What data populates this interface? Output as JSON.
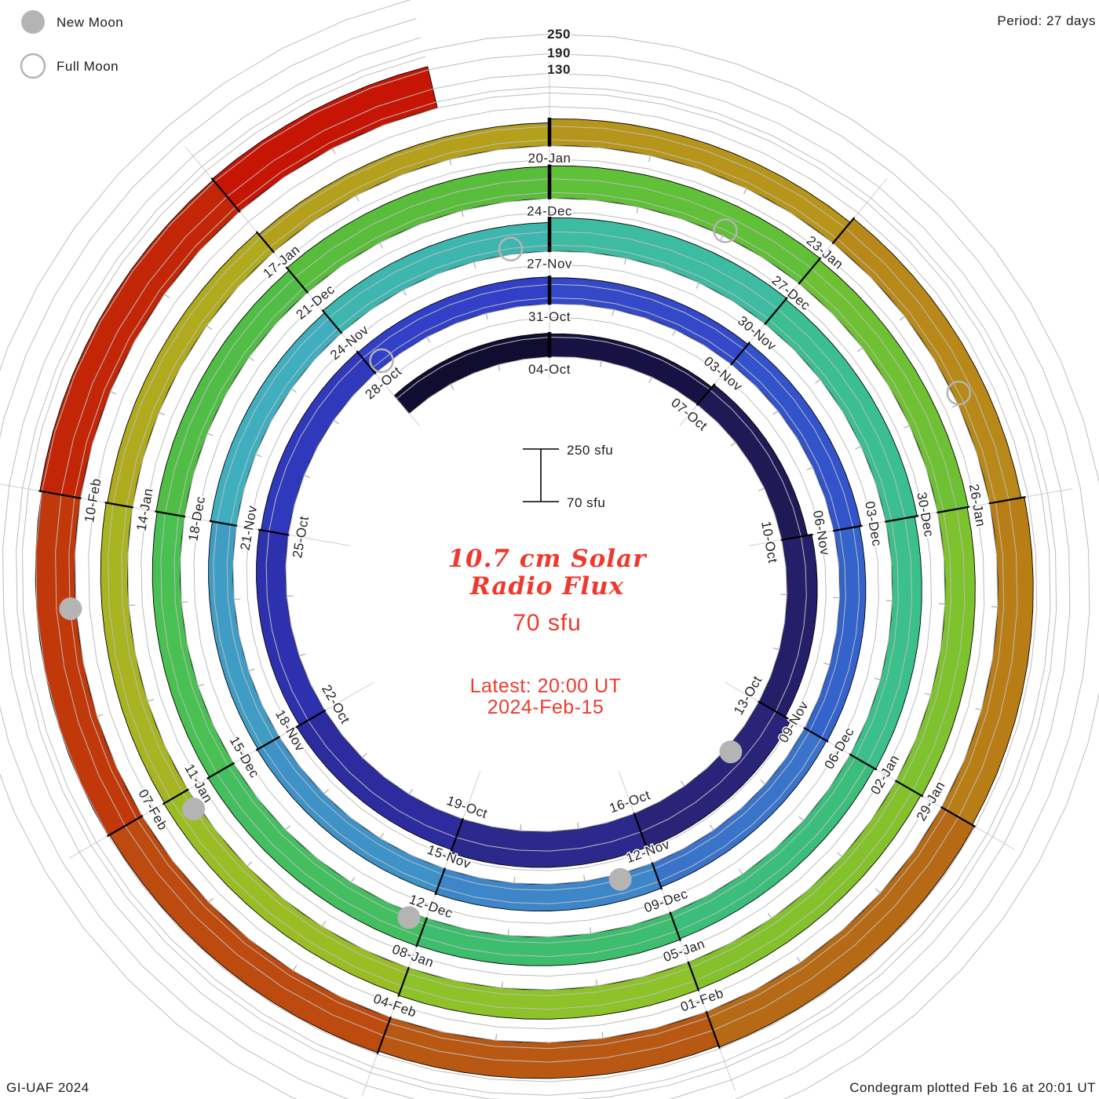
{
  "header": {
    "period_label": "Period: 27 days"
  },
  "legend": {
    "new_moon_label": "New Moon",
    "full_moon_label": "Full Moon",
    "moon_color": "#b4b4b4"
  },
  "footer": {
    "left": "GI-UAF 2024",
    "right": "Condegram plotted Feb 16 at 20:01 UT"
  },
  "center_text": {
    "title_line1": "10.7 cm Solar",
    "title_line2": "Radio Flux",
    "value": "70 sfu",
    "latest_line1": "Latest: 20:00 UT",
    "latest_line2": "2024-Feb-15",
    "color": "#ee3a2e"
  },
  "scale_bar": {
    "top_label": "250 sfu",
    "bottom_label": "70 sfu"
  },
  "radial_scale": {
    "labels": [
      "250",
      "190",
      "130"
    ]
  },
  "chart_data": {
    "type": "spiral_polar_bar_condegram",
    "title": "10.7 cm Solar Radio Flux",
    "units": "sfu",
    "period_days": 27,
    "segment_days": 3,
    "direction": "clockwise",
    "top_anchor_date": "04-Oct",
    "flux_base_sfu": 70,
    "flux_gridlines_sfu": [
      70,
      130,
      190,
      250
    ],
    "data_start_t": 0,
    "data_end_t": 137,
    "grid_end_t": 164,
    "ring_start_dates": [
      "04-Oct",
      "31-Oct",
      "27-Nov",
      "24-Dec",
      "20-Jan"
    ],
    "segments": [
      {
        "date": "01-Oct",
        "label": false,
        "flux": 142,
        "color": "#110d31"
      },
      {
        "date": "04-Oct",
        "label": true,
        "flux": 140,
        "color": "#181244"
      },
      {
        "date": "07-Oct",
        "label": true,
        "flux": 150,
        "color": "#1f1955"
      },
      {
        "date": "10-Oct",
        "label": true,
        "flux": 163,
        "color": "#251e68"
      },
      {
        "date": "13-Oct",
        "label": true,
        "flux": 183,
        "color": "#2a2478"
      },
      {
        "date": "16-Oct",
        "label": true,
        "flux": 180,
        "color": "#2b2a8c"
      },
      {
        "date": "19-Oct",
        "label": true,
        "flux": 170,
        "color": "#2c2c9e"
      },
      {
        "date": "22-Oct",
        "label": true,
        "flux": 160,
        "color": "#2e31ae"
      },
      {
        "date": "25-Oct",
        "label": true,
        "flux": 155,
        "color": "#3038bb"
      },
      {
        "date": "28-Oct",
        "label": true,
        "flux": 153,
        "color": "#3140c6"
      },
      {
        "date": "31-Oct",
        "label": true,
        "flux": 150,
        "color": "#3449c8"
      },
      {
        "date": "03-Nov",
        "label": true,
        "flux": 155,
        "color": "#3253ca"
      },
      {
        "date": "06-Nov",
        "label": true,
        "flux": 150,
        "color": "#3363cb"
      },
      {
        "date": "09-Nov",
        "label": true,
        "flux": 148,
        "color": "#3a74ca"
      },
      {
        "date": "12-Nov",
        "label": true,
        "flux": 152,
        "color": "#3d86c9"
      },
      {
        "date": "15-Nov",
        "label": true,
        "flux": 148,
        "color": "#3e92c8"
      },
      {
        "date": "18-Nov",
        "label": true,
        "flux": 145,
        "color": "#3f9dc5"
      },
      {
        "date": "21-Nov",
        "label": true,
        "flux": 150,
        "color": "#3fafc0"
      },
      {
        "date": "24-Nov",
        "label": true,
        "flux": 158,
        "color": "#3eb6b0"
      },
      {
        "date": "27-Nov",
        "label": true,
        "flux": 172,
        "color": "#3dbca1"
      },
      {
        "date": "30-Nov",
        "label": true,
        "flux": 168,
        "color": "#3bbe92"
      },
      {
        "date": "03-Dec",
        "label": true,
        "flux": 160,
        "color": "#3bbf8b"
      },
      {
        "date": "06-Dec",
        "label": true,
        "flux": 155,
        "color": "#3bbe7c"
      },
      {
        "date": "09-Dec",
        "label": true,
        "flux": 158,
        "color": "#3dbe6e"
      },
      {
        "date": "12-Dec",
        "label": true,
        "flux": 160,
        "color": "#43bf60"
      },
      {
        "date": "15-Dec",
        "label": true,
        "flux": 155,
        "color": "#49c052"
      },
      {
        "date": "18-Dec",
        "label": true,
        "flux": 158,
        "color": "#50be45"
      },
      {
        "date": "21-Dec",
        "label": true,
        "flux": 168,
        "color": "#59bd3c"
      },
      {
        "date": "24-Dec",
        "label": true,
        "flux": 170,
        "color": "#60c038"
      },
      {
        "date": "27-Dec",
        "label": true,
        "flux": 165,
        "color": "#6ec132"
      },
      {
        "date": "30-Dec",
        "label": true,
        "flux": 162,
        "color": "#7ec22d"
      },
      {
        "date": "02-Jan",
        "label": true,
        "flux": 158,
        "color": "#84c22c"
      },
      {
        "date": "05-Jan",
        "label": true,
        "flux": 160,
        "color": "#8ec229"
      },
      {
        "date": "08-Jan",
        "label": true,
        "flux": 155,
        "color": "#9bbd24"
      },
      {
        "date": "11-Jan",
        "label": true,
        "flux": 152,
        "color": "#a8b420"
      },
      {
        "date": "14-Jan",
        "label": true,
        "flux": 148,
        "color": "#b0aa1d"
      },
      {
        "date": "17-Jan",
        "label": true,
        "flux": 140,
        "color": "#b4a01b"
      },
      {
        "date": "20-Jan",
        "label": true,
        "flux": 152,
        "color": "#b7951a"
      },
      {
        "date": "23-Jan",
        "label": true,
        "flux": 168,
        "color": "#b88918"
      },
      {
        "date": "26-Jan",
        "label": true,
        "flux": 178,
        "color": "#b87d15"
      },
      {
        "date": "29-Jan",
        "label": true,
        "flux": 185,
        "color": "#b66a16"
      },
      {
        "date": "01-Feb",
        "label": true,
        "flux": 180,
        "color": "#b85812"
      },
      {
        "date": "04-Feb",
        "label": true,
        "flux": 185,
        "color": "#bd4a0e"
      },
      {
        "date": "07-Feb",
        "label": true,
        "flux": 190,
        "color": "#c1380a"
      },
      {
        "date": "10-Feb",
        "label": true,
        "flux": 196,
        "color": "#c32607"
      },
      {
        "date": "13-Feb",
        "label": false,
        "flux": 200,
        "color": "#c61505"
      }
    ],
    "new_moons": [
      {
        "date": "14-Oct",
        "t": 13.0
      },
      {
        "date": "13-Nov",
        "t": 42.5
      },
      {
        "date": "12-Dec",
        "t": 72.2
      },
      {
        "date": "11-Jan",
        "t": 101.8
      },
      {
        "date": "09-Feb",
        "t": 131.0
      }
    ],
    "full_moons": [
      {
        "date": "28-Oct",
        "t": 27.2
      },
      {
        "date": "27-Nov",
        "t": 56.5
      },
      {
        "date": "26-Dec",
        "t": 86.0
      },
      {
        "date": "25-Jan",
        "t": 115.9
      }
    ]
  }
}
